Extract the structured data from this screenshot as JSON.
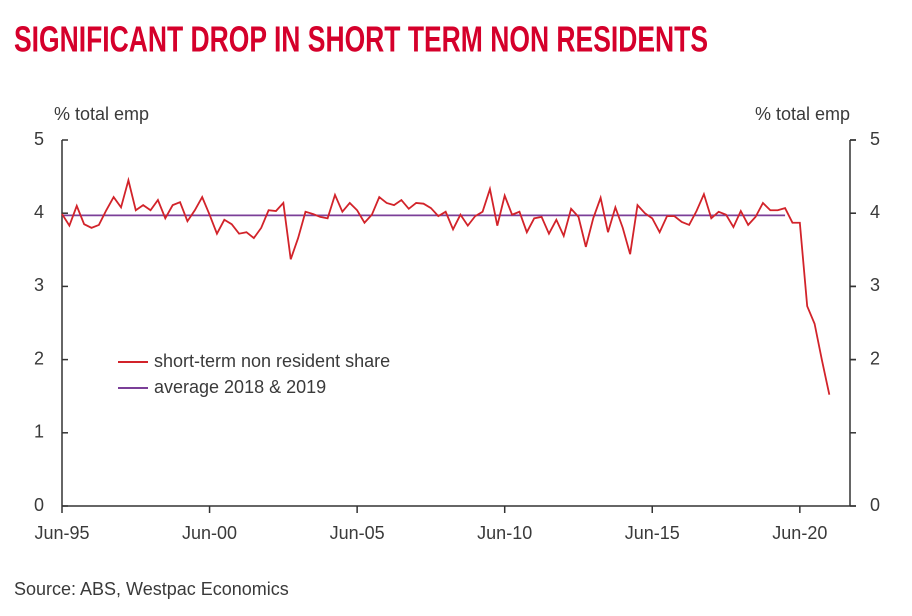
{
  "chart_data": {
    "type": "line",
    "title": "SIGNIFICANT DROP IN SHORT TERM NON RESIDENTS",
    "ylabel": "% total emp",
    "y2label": "% total emp",
    "source": "Source: ABS, Westpac Economics",
    "xlim": [
      1995.5,
      2022.2
    ],
    "xticks": [
      {
        "value": 1995.5,
        "label": "Jun-95"
      },
      {
        "value": 2000.5,
        "label": "Jun-00"
      },
      {
        "value": 2005.5,
        "label": "Jun-05"
      },
      {
        "value": 2010.5,
        "label": "Jun-10"
      },
      {
        "value": 2015.5,
        "label": "Jun-15"
      },
      {
        "value": 2020.5,
        "label": "Jun-20"
      }
    ],
    "ylim": [
      0,
      5
    ],
    "yticks": [
      0,
      1,
      2,
      3,
      4,
      5
    ],
    "y2lim": [
      0,
      5
    ],
    "y2ticks": [
      0,
      2,
      3,
      4,
      5
    ],
    "legend": "lower-left",
    "series": [
      {
        "name": "short-term non resident share",
        "color": "#d2232a",
        "x": [
          1995.5,
          1995.75,
          1996,
          1996.25,
          1996.5,
          1996.75,
          1997,
          1997.25,
          1997.5,
          1997.75,
          1998,
          1998.25,
          1998.5,
          1998.75,
          1999,
          1999.25,
          1999.5,
          1999.75,
          2000,
          2000.25,
          2000.5,
          2000.75,
          2001,
          2001.25,
          2001.5,
          2001.75,
          2002,
          2002.25,
          2002.5,
          2002.75,
          2003,
          2003.25,
          2003.5,
          2003.75,
          2004,
          2004.25,
          2004.5,
          2004.75,
          2005,
          2005.25,
          2005.5,
          2005.75,
          2006,
          2006.25,
          2006.5,
          2006.75,
          2007,
          2007.25,
          2007.5,
          2007.75,
          2008,
          2008.25,
          2008.5,
          2008.75,
          2009,
          2009.25,
          2009.5,
          2009.75,
          2010,
          2010.25,
          2010.5,
          2010.75,
          2011,
          2011.25,
          2011.5,
          2011.75,
          2012,
          2012.25,
          2012.5,
          2012.75,
          2013,
          2013.25,
          2013.5,
          2013.75,
          2014,
          2014.25,
          2014.5,
          2014.75,
          2015,
          2015.25,
          2015.5,
          2015.75,
          2016,
          2016.25,
          2016.5,
          2016.75,
          2017,
          2017.25,
          2017.5,
          2017.75,
          2018,
          2018.25,
          2018.5,
          2018.75,
          2019,
          2019.25,
          2019.5,
          2019.75,
          2020,
          2020.25,
          2020.5,
          2020.75,
          2021,
          2021.25,
          2021.5
        ],
        "values": [
          3.99,
          3.83,
          4.1,
          3.85,
          3.8,
          3.84,
          4.04,
          4.22,
          4.08,
          4.45,
          4.04,
          4.11,
          4.04,
          4.18,
          3.93,
          4.11,
          4.15,
          3.89,
          4.04,
          4.22,
          3.98,
          3.72,
          3.91,
          3.85,
          3.72,
          3.74,
          3.66,
          3.8,
          4.04,
          4.03,
          4.14,
          3.37,
          3.66,
          4.02,
          3.99,
          3.95,
          3.93,
          4.25,
          4.02,
          4.14,
          4.04,
          3.87,
          3.98,
          4.22,
          4.14,
          4.11,
          4.18,
          4.06,
          4.14,
          4.13,
          4.07,
          3.96,
          4.02,
          3.78,
          3.98,
          3.83,
          3.96,
          4.02,
          4.33,
          3.83,
          4.24,
          3.98,
          4.02,
          3.74,
          3.93,
          3.95,
          3.72,
          3.91,
          3.69,
          4.06,
          3.95,
          3.54,
          3.93,
          4.21,
          3.74,
          4.08,
          3.8,
          3.44,
          4.11,
          4.0,
          3.93,
          3.74,
          3.96,
          3.96,
          3.88,
          3.84,
          4.03,
          4.26,
          3.93,
          4.02,
          3.98,
          3.81,
          4.03,
          3.84,
          3.95,
          4.14,
          4.04,
          4.04,
          4.07,
          3.87,
          3.87,
          2.73,
          2.49,
          1.99,
          1.52
        ]
      },
      {
        "name": "average 2018 & 2019",
        "color": "#7b3f98",
        "x": [
          1995.5,
          2020
        ],
        "values": [
          3.97,
          3.97
        ]
      }
    ]
  }
}
